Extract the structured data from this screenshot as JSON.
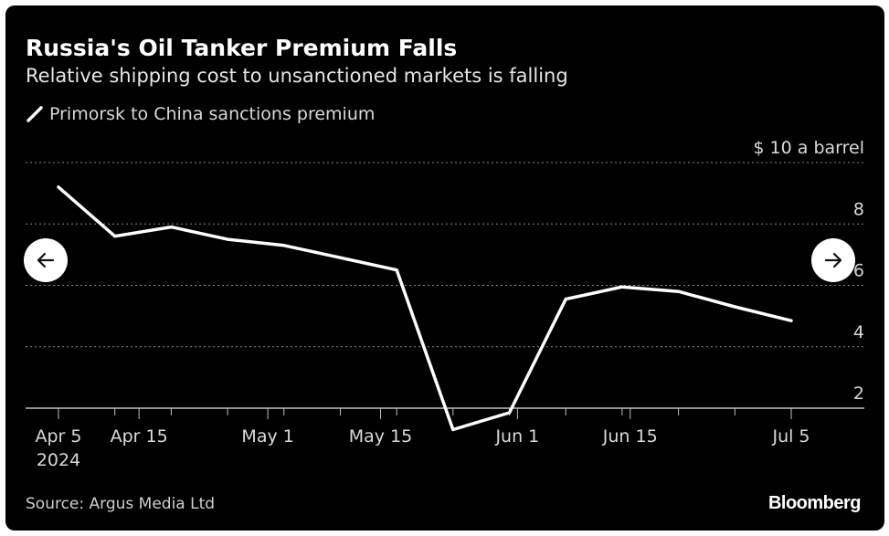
{
  "chart": {
    "title": "Russia's Oil Tanker Premium Falls",
    "subtitle": "Relative shipping cost to unsanctioned markets is falling",
    "legend_label": "Primorsk to China sanctions premium",
    "y_unit_label": "$ 10 a barrel",
    "source": "Source: Argus Media Ltd",
    "logo": "Bloomberg",
    "line_color": "#ffffff",
    "background_color": "#000000"
  },
  "nav": {
    "prev_icon": "arrow-left-icon",
    "next_icon": "arrow-right-icon"
  },
  "chart_data": {
    "type": "line",
    "title": "Russia's Oil Tanker Premium Falls",
    "subtitle": "Relative shipping cost to unsanctioned markets is falling",
    "xlabel": "",
    "ylabel": "",
    "ylim": [
      2,
      10
    ],
    "y_ticks": [
      2,
      4,
      6,
      8,
      10
    ],
    "y_tick_labels": [
      "2",
      "4",
      "6",
      "8",
      "$ 10 a barrel"
    ],
    "x_ticks": [
      {
        "date": "2024-04-05",
        "label": "Apr 5",
        "sublabel": "2024"
      },
      {
        "date": "2024-04-15",
        "label": "Apr 15"
      },
      {
        "date": "2024-05-01",
        "label": "May 1"
      },
      {
        "date": "2024-05-15",
        "label": "May 15"
      },
      {
        "date": "2024-06-01",
        "label": "Jun 1"
      },
      {
        "date": "2024-06-15",
        "label": "Jun 15"
      },
      {
        "date": "2024-07-05",
        "label": "Jul 5"
      }
    ],
    "x_minor_tick_dates": [
      "2024-04-12",
      "2024-04-19",
      "2024-04-26",
      "2024-05-03",
      "2024-05-10",
      "2024-05-17",
      "2024-05-24",
      "2024-05-31",
      "2024-06-07",
      "2024-06-14",
      "2024-06-21",
      "2024-06-28",
      "2024-07-05"
    ],
    "grid": true,
    "legend_position": "top-left",
    "series": [
      {
        "name": "Primorsk to China sanctions premium",
        "x": [
          "2024-04-05",
          "2024-04-12",
          "2024-04-19",
          "2024-04-26",
          "2024-05-03",
          "2024-05-10",
          "2024-05-17",
          "2024-05-24",
          "2024-05-31",
          "2024-06-07",
          "2024-06-14",
          "2024-06-21",
          "2024-06-28",
          "2024-07-05"
        ],
        "y": [
          9.2,
          7.6,
          7.9,
          7.5,
          7.3,
          6.9,
          6.5,
          1.3,
          1.85,
          5.55,
          5.95,
          5.8,
          5.3,
          4.85
        ]
      }
    ]
  }
}
